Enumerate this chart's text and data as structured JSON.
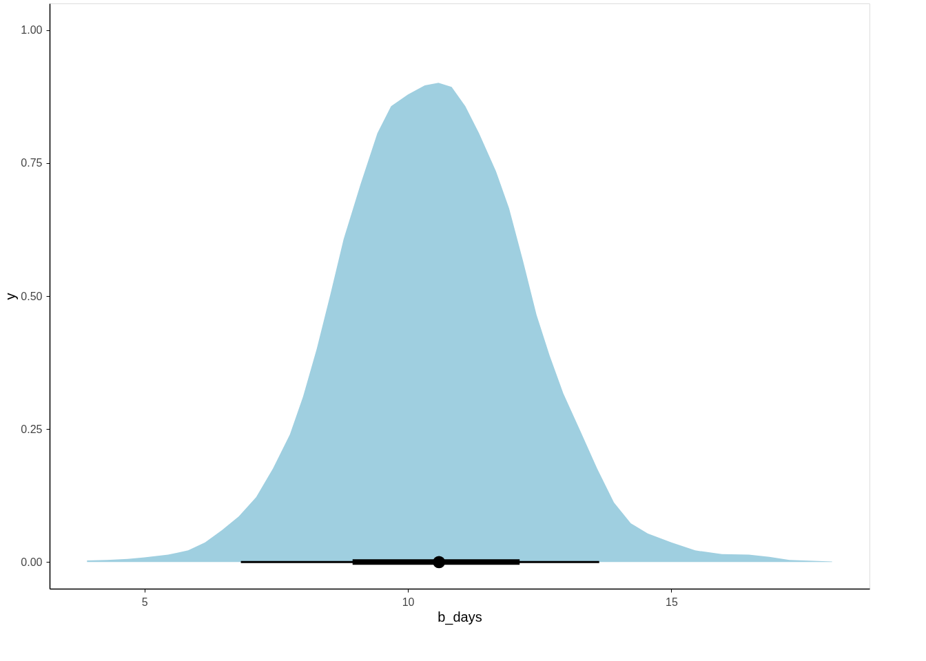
{
  "chart_data": {
    "type": "area",
    "xlabel": "b_days",
    "ylabel": "y",
    "xlim": [
      3.2,
      18.76
    ],
    "ylim": [
      -0.05,
      1.05
    ],
    "xticks": [
      5,
      10,
      15
    ],
    "yticks": [
      {
        "value": 0,
        "label": "0.00"
      },
      {
        "value": 0.25,
        "label": "0.25"
      },
      {
        "value": 0.5,
        "label": "0.50"
      },
      {
        "value": 0.75,
        "label": "0.75"
      },
      {
        "value": 1,
        "label": "1.00"
      }
    ],
    "grid": false,
    "series": [
      {
        "color": "#9fcfe0",
        "x": [
          3.91,
          4.29,
          4.68,
          5.0,
          5.45,
          5.83,
          6.15,
          6.47,
          6.79,
          7.12,
          7.44,
          7.76,
          8.01,
          8.27,
          8.53,
          8.78,
          9.1,
          9.42,
          9.68,
          10.0,
          10.32,
          10.58,
          10.83,
          11.09,
          11.35,
          11.67,
          11.92,
          12.18,
          12.44,
          12.69,
          12.95,
          13.27,
          13.59,
          13.91,
          14.23,
          14.55,
          15.0,
          15.45,
          15.96,
          16.47,
          16.86,
          17.24,
          18.05
        ],
        "values": [
          0.003,
          0.004,
          0.006,
          0.009,
          0.014,
          0.022,
          0.037,
          0.06,
          0.086,
          0.122,
          0.176,
          0.24,
          0.311,
          0.401,
          0.504,
          0.607,
          0.71,
          0.806,
          0.857,
          0.879,
          0.896,
          0.901,
          0.893,
          0.857,
          0.806,
          0.735,
          0.665,
          0.568,
          0.465,
          0.388,
          0.317,
          0.247,
          0.176,
          0.112,
          0.073,
          0.054,
          0.037,
          0.022,
          0.015,
          0.014,
          0.01,
          0.004,
          0.001
        ]
      },
      {
        "type": "line",
        "color": "#000000",
        "x": [
          6.83,
          13.63
        ],
        "values": [
          0,
          0
        ]
      },
      {
        "type": "scatter",
        "color": "#000000",
        "marker": "circle",
        "x": [
          10.59
        ],
        "values": [
          0
        ],
        "xerrors": [
          [
            8.95,
            12.12
          ]
        ]
      }
    ]
  }
}
